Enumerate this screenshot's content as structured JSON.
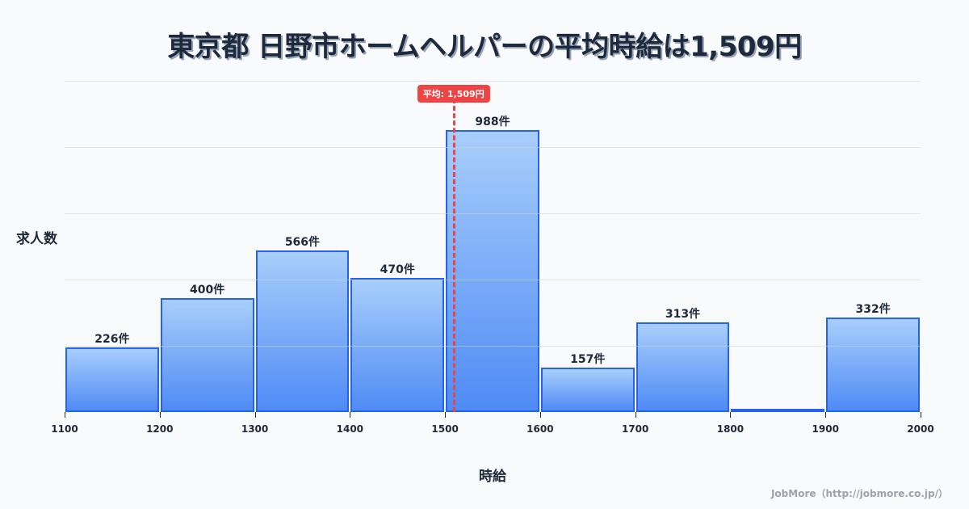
{
  "title": "東京都 日野市ホームヘルパーの平均時給は1,509円",
  "y_axis_label": "求人数",
  "x_axis_label": "時給",
  "average_badge": "平均: 1,509円",
  "credit": "JobMore（http://jobmore.co.jp/）",
  "colors": {
    "bar_top": "#a8cefb",
    "bar_bottom": "#4f8bf5",
    "bar_border": "#2563eb",
    "average_line": "#ef4444",
    "text": "#1e293b",
    "background": "#f8fafc"
  },
  "bars": [
    {
      "label": "226件"
    },
    {
      "label": "400件"
    },
    {
      "label": "566件"
    },
    {
      "label": "470件"
    },
    {
      "label": "988件"
    },
    {
      "label": "157件"
    },
    {
      "label": "313件"
    },
    {
      "label": ""
    },
    {
      "label": "332件"
    }
  ],
  "ticks": [
    "1100",
    "1200",
    "1300",
    "1400",
    "1500",
    "1600",
    "1700",
    "1800",
    "1900",
    "2000"
  ],
  "chart_data": {
    "type": "bar",
    "title": "東京都 日野市ホームヘルパーの平均時給は1,509円",
    "xlabel": "時給",
    "ylabel": "求人数",
    "categories": [
      "1100-1200",
      "1200-1300",
      "1300-1400",
      "1400-1500",
      "1500-1600",
      "1600-1700",
      "1700-1800",
      "1800-1900",
      "1900-2000"
    ],
    "bin_edges": [
      1100,
      1200,
      1300,
      1400,
      1500,
      1600,
      1700,
      1800,
      1900,
      2000
    ],
    "values": [
      226,
      400,
      566,
      470,
      988,
      157,
      313,
      11,
      332
    ],
    "value_labels": [
      "226件",
      "400件",
      "566件",
      "470件",
      "988件",
      "157件",
      "313件",
      "",
      "332件"
    ],
    "annotations": [
      {
        "type": "vline",
        "x": 1509,
        "label": "平均: 1,509円",
        "style": "dashed",
        "color": "#ef4444"
      }
    ],
    "xlim": [
      1100,
      2000
    ],
    "ylim": [
      0,
      1161
    ],
    "grid": "horizontal",
    "legend": "none"
  }
}
